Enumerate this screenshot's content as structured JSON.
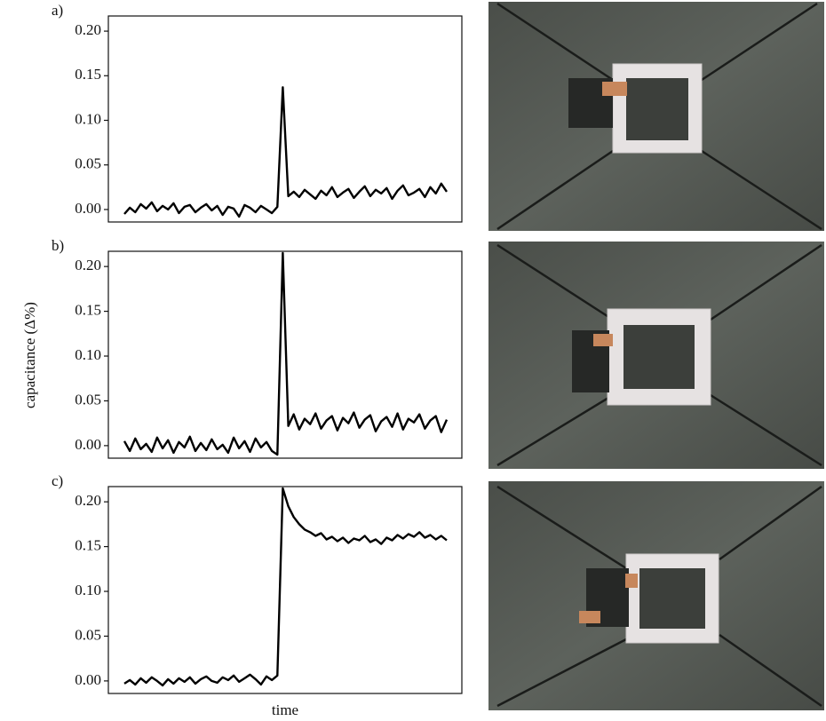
{
  "chart_data": [
    {
      "type": "line",
      "label": "a)",
      "values": [
        -0.005,
        0.002,
        -0.003,
        0.006,
        0.001,
        0.008,
        -0.002,
        0.004,
        0.0,
        0.007,
        -0.004,
        0.003,
        0.005,
        -0.003,
        0.002,
        0.006,
        -0.001,
        0.004,
        -0.006,
        0.003,
        0.001,
        -0.008,
        0.005,
        0.002,
        -0.003,
        0.004,
        0.0,
        -0.004,
        0.003,
        0.137,
        0.015,
        0.02,
        0.014,
        0.022,
        0.017,
        0.012,
        0.021,
        0.016,
        0.025,
        0.014,
        0.019,
        0.023,
        0.013,
        0.02,
        0.026,
        0.015,
        0.022,
        0.018,
        0.024,
        0.012,
        0.021,
        0.027,
        0.016,
        0.019,
        0.023,
        0.014,
        0.025,
        0.018,
        0.029,
        0.02
      ],
      "color": "#000000",
      "ylim": [
        -0.014,
        0.217
      ],
      "yticks": [
        {
          "value": 0,
          "label": "0.00"
        },
        {
          "value": 0.05,
          "label": "0.05"
        },
        {
          "value": 0.1,
          "label": "0.10"
        },
        {
          "value": 0.15,
          "label": "0.15"
        },
        {
          "value": 0.2,
          "label": "0.20"
        }
      ]
    },
    {
      "type": "line",
      "label": "b)",
      "ylabel": "capacitance (Δ%)",
      "values": [
        0.005,
        -0.006,
        0.008,
        -0.004,
        0.002,
        -0.007,
        0.009,
        -0.003,
        0.006,
        -0.008,
        0.004,
        -0.002,
        0.01,
        -0.006,
        0.003,
        -0.005,
        0.007,
        -0.004,
        0.001,
        -0.008,
        0.009,
        -0.003,
        0.005,
        -0.007,
        0.008,
        -0.002,
        0.004,
        -0.006,
        -0.01,
        0.215,
        0.022,
        0.035,
        0.018,
        0.03,
        0.024,
        0.036,
        0.019,
        0.028,
        0.033,
        0.017,
        0.031,
        0.025,
        0.037,
        0.02,
        0.029,
        0.034,
        0.016,
        0.027,
        0.032,
        0.021,
        0.036,
        0.018,
        0.03,
        0.026,
        0.035,
        0.019,
        0.028,
        0.033,
        0.015,
        0.029
      ],
      "color": "#000000",
      "ylim": [
        -0.014,
        0.217
      ],
      "yticks": [
        {
          "value": 0,
          "label": "0.00"
        },
        {
          "value": 0.05,
          "label": "0.05"
        },
        {
          "value": 0.1,
          "label": "0.10"
        },
        {
          "value": 0.15,
          "label": "0.15"
        },
        {
          "value": 0.2,
          "label": "0.20"
        }
      ]
    },
    {
      "type": "line",
      "label": "c)",
      "xlabel": "time",
      "values": [
        -0.003,
        0.001,
        -0.004,
        0.003,
        -0.002,
        0.004,
        0.0,
        -0.005,
        0.002,
        -0.003,
        0.003,
        -0.001,
        0.004,
        -0.003,
        0.002,
        0.005,
        0.0,
        -0.002,
        0.004,
        0.001,
        0.006,
        -0.001,
        0.003,
        0.007,
        0.002,
        -0.004,
        0.005,
        0.001,
        0.006,
        0.215,
        0.195,
        0.183,
        0.175,
        0.169,
        0.166,
        0.162,
        0.165,
        0.158,
        0.161,
        0.156,
        0.16,
        0.154,
        0.159,
        0.157,
        0.162,
        0.155,
        0.158,
        0.153,
        0.16,
        0.157,
        0.163,
        0.159,
        0.164,
        0.161,
        0.166,
        0.16,
        0.163,
        0.158,
        0.162,
        0.157
      ],
      "color": "#000000",
      "ylim": [
        -0.014,
        0.217
      ],
      "yticks": [
        {
          "value": 0,
          "label": "0.00"
        },
        {
          "value": 0.05,
          "label": "0.05"
        },
        {
          "value": 0.1,
          "label": "0.10"
        },
        {
          "value": 0.15,
          "label": "0.15"
        },
        {
          "value": 0.2,
          "label": "0.20"
        }
      ]
    }
  ]
}
